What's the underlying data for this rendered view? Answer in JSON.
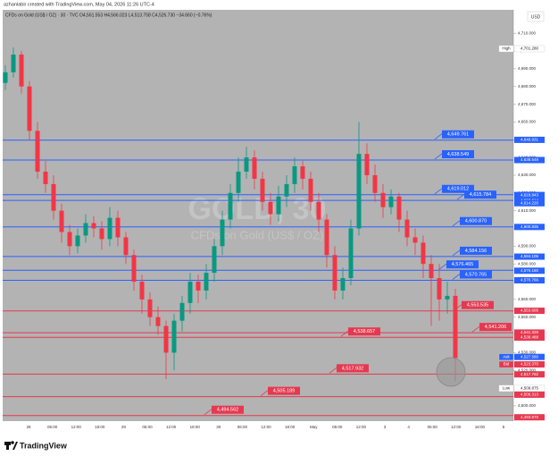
{
  "header": {
    "credit": "azhanlabir created with TradingView.com, May 04, 2026 11:26 UTC-4",
    "legend": "CFDs on Gold (US$ / OZ) · 30 · TVC  O4,561.553 H4,566.023 L4,513.758 C4,526.730 −34.660 (−0.76%)",
    "currency": "USD",
    "watermark": "GOLD, 30",
    "watermark_sub": "CFDs on Gold (US$ / OZ)"
  },
  "footer": {
    "brand": "TradingView"
  },
  "chart_data": {
    "type": "candlestick",
    "up_color": "#089981",
    "down_color": "#f23645",
    "ylim": [
      4491.4,
      4723.2
    ],
    "yticks": [
      {
        "value": 4500,
        "label": "4,500.000"
      },
      {
        "value": 4510,
        "label": "4,510.000"
      },
      {
        "value": 4520,
        "label": "4,520.000"
      },
      {
        "value": 4530,
        "label": "4,530.000"
      },
      {
        "value": 4540,
        "label": "4,540.000"
      },
      {
        "value": 4550,
        "label": "4,550.000"
      },
      {
        "value": 4560,
        "label": "4,560.000"
      },
      {
        "value": 4570,
        "label": "4,570.000"
      },
      {
        "value": 4580,
        "label": "4,580.000"
      },
      {
        "value": 4590,
        "label": "4,590.000"
      },
      {
        "value": 4600,
        "label": "4,600.000"
      },
      {
        "value": 4610,
        "label": "4,610.000"
      },
      {
        "value": 4620,
        "label": "4,620.000"
      },
      {
        "value": 4630,
        "label": "4,630.000"
      },
      {
        "value": 4640,
        "label": "4,640.000"
      },
      {
        "value": 4650,
        "label": "4,650.000"
      },
      {
        "value": 4660,
        "label": "4,660.000"
      },
      {
        "value": 4670,
        "label": "4,670.000"
      },
      {
        "value": 4680,
        "label": "4,680.000"
      },
      {
        "value": 4690,
        "label": "4,690.000"
      },
      {
        "value": 4700,
        "label": "4,700.000"
      },
      {
        "value": 4710,
        "label": "4,710.000"
      }
    ],
    "x_labels": [
      "28",
      "06:00",
      "12:00",
      "18:00",
      "29",
      "06:00",
      "12:00",
      "18:00",
      "30",
      "06:00",
      "12:00",
      "18:00",
      "May",
      "06:00",
      "12:00",
      "3",
      "4",
      "06:00",
      "12:00",
      "18:00",
      "5"
    ],
    "open": [
      4682,
      4688,
      4698,
      4680,
      4655,
      4632,
      4625,
      4610,
      4598,
      4590,
      4596,
      4603,
      4600,
      4594,
      4606,
      4595,
      4585,
      4570,
      4560,
      4550,
      4545,
      4530,
      4548,
      4558,
      4570,
      4565,
      4575,
      4590,
      4605,
      4620,
      4632,
      4640,
      4628,
      4615,
      4608,
      4618,
      4625,
      4635,
      4628,
      4615,
      4605,
      4585,
      4565,
      4572,
      4600,
      4642,
      4630,
      4620,
      4612,
      4618,
      4605,
      4595,
      4592,
      4580,
      4572,
      4560,
      4562
    ],
    "high": [
      4692,
      4702,
      4700,
      4683,
      4660,
      4638,
      4630,
      4614,
      4602,
      4600,
      4608,
      4607,
      4604,
      4612,
      4610,
      4598,
      4588,
      4574,
      4564,
      4556,
      4548,
      4552,
      4562,
      4575,
      4574,
      4580,
      4594,
      4610,
      4625,
      4640,
      4646,
      4644,
      4632,
      4620,
      4624,
      4630,
      4640,
      4638,
      4632,
      4620,
      4608,
      4590,
      4578,
      4605,
      4660,
      4648,
      4636,
      4625,
      4622,
      4620,
      4610,
      4600,
      4596,
      4585,
      4580,
      4570,
      4566
    ],
    "low": [
      4678,
      4685,
      4676,
      4650,
      4628,
      4620,
      4605,
      4592,
      4585,
      4586,
      4592,
      4595,
      4588,
      4590,
      4590,
      4580,
      4565,
      4552,
      4545,
      4540,
      4515,
      4520,
      4542,
      4552,
      4558,
      4560,
      4570,
      4585,
      4600,
      4615,
      4628,
      4622,
      4610,
      4602,
      4604,
      4612,
      4620,
      4622,
      4610,
      4598,
      4578,
      4560,
      4560,
      4568,
      4596,
      4625,
      4615,
      4606,
      4608,
      4598,
      4590,
      4585,
      4572,
      4545,
      4548,
      4552,
      4514
    ],
    "close": [
      4688,
      4698,
      4680,
      4655,
      4632,
      4625,
      4610,
      4598,
      4590,
      4596,
      4603,
      4600,
      4594,
      4606,
      4595,
      4585,
      4570,
      4560,
      4550,
      4545,
      4530,
      4548,
      4558,
      4570,
      4565,
      4575,
      4590,
      4605,
      4620,
      4632,
      4640,
      4628,
      4615,
      4608,
      4618,
      4625,
      4635,
      4628,
      4615,
      4605,
      4585,
      4565,
      4572,
      4600,
      4642,
      4630,
      4620,
      4612,
      4618,
      4605,
      4595,
      4592,
      4580,
      4572,
      4560,
      4562,
      4527
    ],
    "levels": [
      {
        "value": 4649.761,
        "label": "4,649.761",
        "color": "#2962ff"
      },
      {
        "value": 4638.549,
        "label": "4,638.549",
        "color": "#2962ff"
      },
      {
        "value": 4619.012,
        "label": "4,619.012",
        "color": "#2962ff"
      },
      {
        "value": 4615.784,
        "label": "4,615.784",
        "color": "#2962ff"
      },
      {
        "value": 4600.87,
        "label": "4,600.870",
        "color": "#2962ff"
      },
      {
        "value": 4584.156,
        "label": "4,584.156",
        "color": "#2962ff"
      },
      {
        "value": 4576.465,
        "label": "4,576.465",
        "color": "#2962ff"
      },
      {
        "value": 4570.765,
        "label": "4,570.765",
        "color": "#2962ff"
      },
      {
        "value": 4553.535,
        "label": "4,553.535",
        "color": "#e53950"
      },
      {
        "value": 4541.206,
        "label": "4,541.206",
        "color": "#e53950"
      },
      {
        "value": 4538.657,
        "label": "4,538.657",
        "color": "#e53950"
      },
      {
        "value": 4517.932,
        "label": "4,517.932",
        "color": "#e53950"
      },
      {
        "value": 4505.189,
        "label": "4,505.189",
        "color": "#e53950"
      },
      {
        "value": 4494.562,
        "label": "4,494.562",
        "color": "#e53950"
      }
    ],
    "price_tags": [
      {
        "value": 4701.28,
        "label": "4,701.280",
        "note": "High",
        "color": "#ffffff"
      },
      {
        "value": 4649.931,
        "label": "4,649.931",
        "color": "#2962ff"
      },
      {
        "value": 4638.549,
        "label": "4,638.549",
        "color": "#2962ff"
      },
      {
        "value": 4618.843,
        "label": "4,618.843",
        "color": "#2962ff"
      },
      {
        "value": 4615.614,
        "label": "4,615.614",
        "color": "#2962ff"
      },
      {
        "value": 4614.22,
        "label": "4,614.220",
        "color": "#2962ff"
      },
      {
        "value": 4600.835,
        "label": "4,600.835",
        "color": "#2962ff"
      },
      {
        "value": 4584.106,
        "label": "4,584.106",
        "color": "#2962ff"
      },
      {
        "value": 4576.16,
        "label": "4,576.160",
        "color": "#2962ff"
      },
      {
        "value": 4570.766,
        "label": "4,570.766",
        "color": "#2962ff"
      },
      {
        "value": 4553.605,
        "label": "4,553.605",
        "color": "#e53950"
      },
      {
        "value": 4541.328,
        "label": "4,541.328",
        "color": "#e53950"
      },
      {
        "value": 4538.488,
        "label": "4,538.488",
        "color": "#e53950"
      },
      {
        "value": 4527.58,
        "label": "4,527.580",
        "note": "Ask",
        "color": "#2962ff"
      },
      {
        "value": 4523.37,
        "label": "4,523.370",
        "note": "Bid",
        "color": "#e53950"
      },
      {
        "value": 4517.762,
        "label": "4,517.762",
        "color": "#e53950"
      },
      {
        "value": 4509.875,
        "label": "4,509.875",
        "note": "Low",
        "color": "#ffffff"
      },
      {
        "value": 4506.313,
        "label": "4,506.313",
        "color": "#e53950"
      },
      {
        "value": 4493.57,
        "label": "4,493.570",
        "color": "#e53950"
      }
    ]
  }
}
